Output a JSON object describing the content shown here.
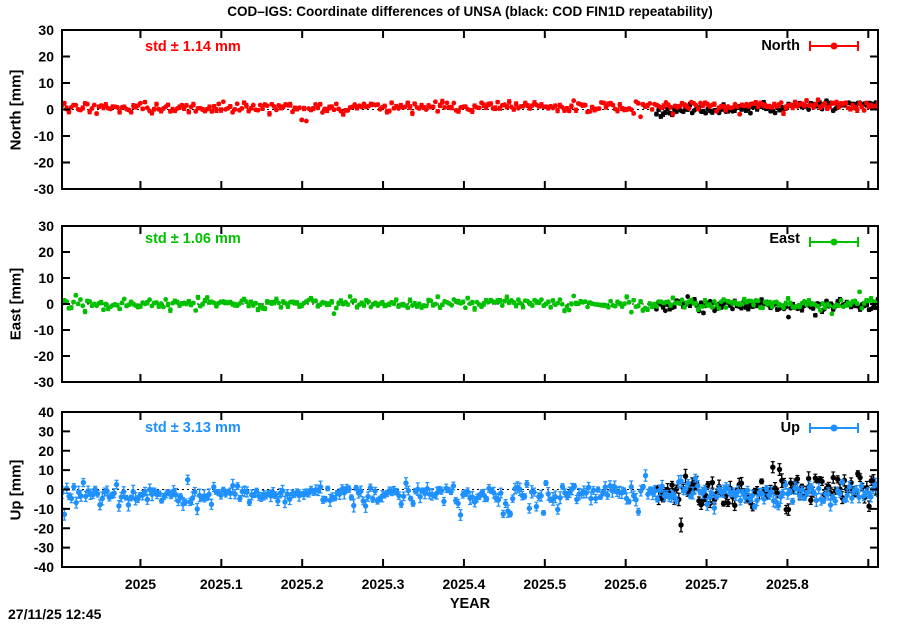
{
  "title": "COD–IGS: Coordinate differences of UNSA (black: COD FIN1D repeatability)",
  "timestamp": "27/11/25 12:45",
  "x_axis": {
    "label": "YEAR",
    "lim": [
      2024.903,
      2025.912
    ],
    "ticks": [
      2025.0,
      2025.1,
      2025.2,
      2025.3,
      2025.4,
      2025.5,
      2025.6,
      2025.7,
      2025.8,
      2025.9
    ],
    "labels": [
      "2025",
      "2025.1",
      "2025.2",
      "2025.3",
      "2025.4",
      "2025.5",
      "2025.6",
      "2025.7",
      "2025.8",
      ""
    ]
  },
  "chart_data": [
    {
      "type": "scatter",
      "name": "North",
      "ylabel": "North [mm]",
      "ylim": [
        -30,
        30
      ],
      "ytick_step": 10,
      "std_label": "std ± 1.14 mm",
      "std_value_mm": 1.14,
      "legend_label": "North",
      "color": "#ff0000",
      "legend_position": "top-right-inside",
      "zero_line": "dotted",
      "series": [
        {
          "name": "COD FIN1D repeatability",
          "color": "#000000",
          "x_start": 2025.638,
          "x_end": 2025.912,
          "n": 100,
          "mean": -0.2,
          "std": 0.9,
          "trend": [
            -0.5,
            2.3
          ],
          "ebar": 0.6,
          "r": 2.4,
          "outlier_p": 0,
          "outlier_amp": 0,
          "outlier_down": 0.5,
          "seed": 11
        },
        {
          "name": "COD-IGS difference North",
          "color": "#ff0000",
          "x_start": 2024.903,
          "x_end": 2025.912,
          "n": 355,
          "mean": 0.5,
          "std": 0.95,
          "trend": [
            0,
            1.0
          ],
          "ebar": 0.6,
          "r": 2.4,
          "outlier_p": 0.015,
          "outlier_amp": 2,
          "outlier_down": 0.6,
          "seed": 12
        }
      ]
    },
    {
      "type": "scatter",
      "name": "East",
      "ylabel": "East [mm]",
      "ylim": [
        -30,
        30
      ],
      "ytick_step": 10,
      "std_label": "std ± 1.06 mm",
      "std_value_mm": 1.06,
      "legend_label": "East",
      "color": "#00c000",
      "legend_position": "top-right-inside",
      "zero_line": "dotted",
      "series": [
        {
          "name": "COD FIN1D repeatability",
          "color": "#000000",
          "x_start": 2025.638,
          "x_end": 2025.912,
          "n": 100,
          "mean": -0.4,
          "std": 1.3,
          "trend": [
            0,
            -0.4
          ],
          "ebar": 0.6,
          "r": 2.4,
          "outlier_p": 0.02,
          "outlier_amp": 2.5,
          "outlier_down": 0.6,
          "seed": 21
        },
        {
          "name": "COD-IGS difference East",
          "color": "#00c000",
          "x_start": 2024.903,
          "x_end": 2025.912,
          "n": 355,
          "mean": 0.2,
          "std": 1.0,
          "trend": [
            0,
            0
          ],
          "ebar": 0.6,
          "r": 2.4,
          "outlier_p": 0.02,
          "outlier_amp": 2.5,
          "outlier_down": 0.7,
          "seed": 22
        }
      ]
    },
    {
      "type": "scatter",
      "name": "Up",
      "ylabel": "Up [mm]",
      "ylim": [
        -40,
        40
      ],
      "ytick_step": 10,
      "std_label": "std ± 3.13 mm",
      "std_value_mm": 3.13,
      "legend_label": "Up",
      "color": "#1e90ff",
      "legend_position": "top-right-inside",
      "zero_line": "dotted",
      "series": [
        {
          "name": "COD FIN1D repeatability",
          "color": "#000000",
          "x_start": 2025.638,
          "x_end": 2025.912,
          "n": 100,
          "mean": -1.2,
          "std": 4.2,
          "trend": [
            0,
            1.5
          ],
          "ebar": 2.4,
          "r": 2.7,
          "outlier_p": 0.05,
          "outlier_amp": 5,
          "outlier_down": 0.5,
          "seed": 31
        },
        {
          "name": "COD-IGS difference Up",
          "color": "#1e90ff",
          "x_start": 2024.903,
          "x_end": 2025.912,
          "n": 345,
          "mean": -2.6,
          "std": 2.6,
          "trend": [
            0,
            0.3
          ],
          "ebar": 2.2,
          "r": 2.7,
          "outlier_p": 0.07,
          "outlier_amp": 7,
          "outlier_down": 0.75,
          "seed": 32
        }
      ]
    }
  ]
}
